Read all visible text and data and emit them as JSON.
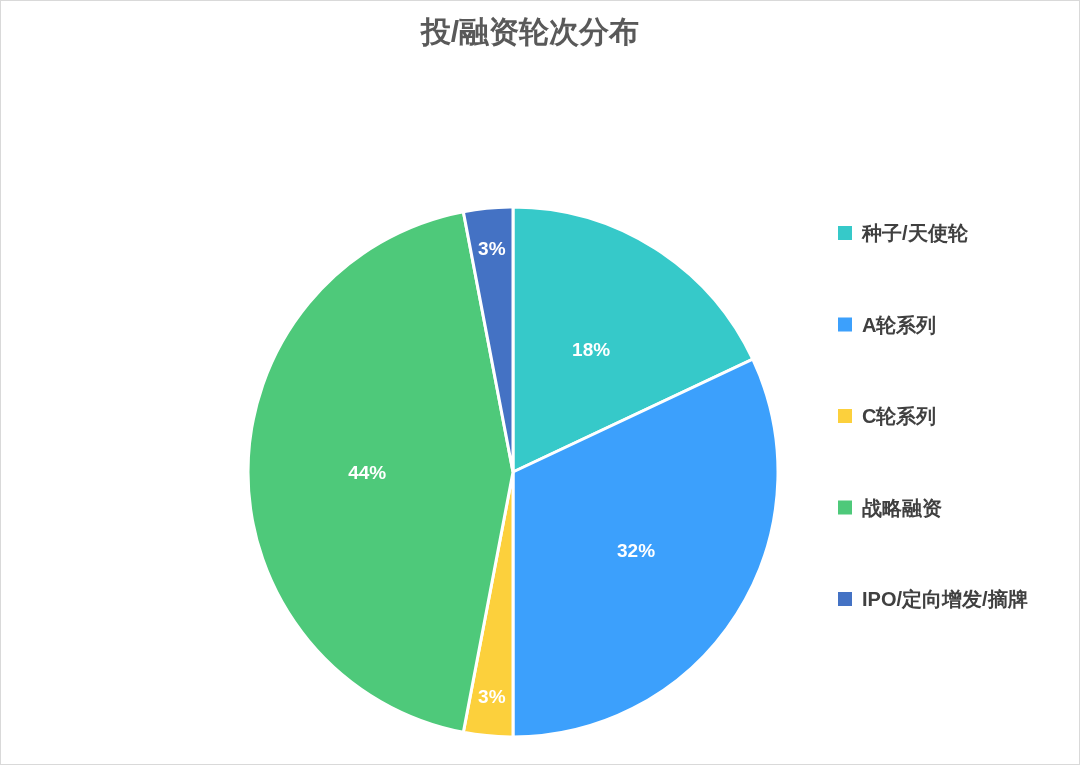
{
  "chart_data": {
    "type": "pie",
    "title": "投/融资轮次分布",
    "categories": [
      "种子/天使轮",
      "A轮系列",
      "C轮系列",
      "战略融资",
      "IPO/定向增发/摘牌"
    ],
    "values": [
      18,
      32,
      3,
      44,
      3
    ],
    "colors": [
      "#36c9c9",
      "#3ca0fc",
      "#fcd03c",
      "#4ec97a",
      "#4472c4"
    ],
    "value_labels": [
      "18%",
      "32%",
      "3%",
      "44%",
      "3%"
    ],
    "legend": "right"
  }
}
